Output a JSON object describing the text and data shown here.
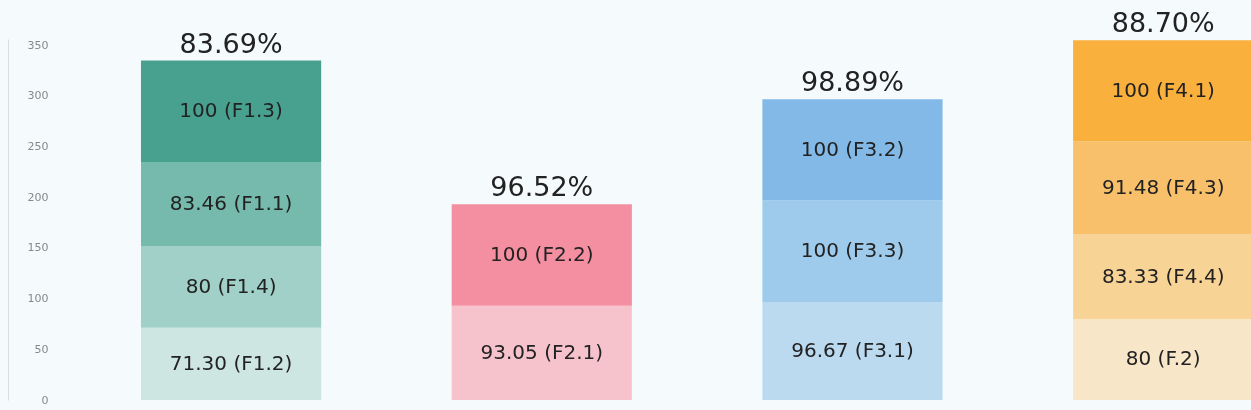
{
  "chart_data": {
    "type": "bar",
    "stacked": true,
    "categories": [
      null,
      null,
      null,
      null
    ],
    "series": [
      {
        "colors": [
          "#cde6e1",
          "#f6c3cc",
          "#bbdaf0",
          "#f8e6c8"
        ],
        "values": [
          71.3,
          93.05,
          96.67,
          80
        ],
        "value_labels": [
          "71.30 (F1.2)",
          "93.05 (F2.1)",
          "96.67 (F3.1)",
          "80 (F.2)"
        ]
      },
      {
        "colors": [
          "#a0d0c7",
          "#f48fa2",
          "#9ecbeb",
          "#f8d396"
        ],
        "values": [
          80,
          100,
          100,
          83.33
        ],
        "value_labels": [
          "80 (F1.4)",
          "100 (F2.2)",
          "100 (F3.3)",
          "83.33 (F4.4)"
        ]
      },
      {
        "colors": [
          "#76baad",
          null,
          "#82b9e6",
          "#f8c06a"
        ],
        "values": [
          83.46,
          null,
          100,
          91.48
        ],
        "value_labels": [
          "83.46 (F1.1)",
          null,
          "100 (F3.2)",
          "91.48 (F4.3)"
        ]
      },
      {
        "colors": [
          "#48a08f",
          null,
          null,
          "#fab03c"
        ],
        "values": [
          100,
          null,
          null,
          100
        ],
        "value_labels": [
          "100 (F1.3)",
          null,
          null,
          "100 (F4.1)"
        ]
      }
    ],
    "annotations": [
      "83.69%",
      "96.52%",
      "98.89%",
      "88.70%"
    ],
    "ylim": [
      0,
      356
    ],
    "yticks": [
      0,
      50,
      100,
      150,
      200,
      250,
      300,
      350
    ]
  }
}
